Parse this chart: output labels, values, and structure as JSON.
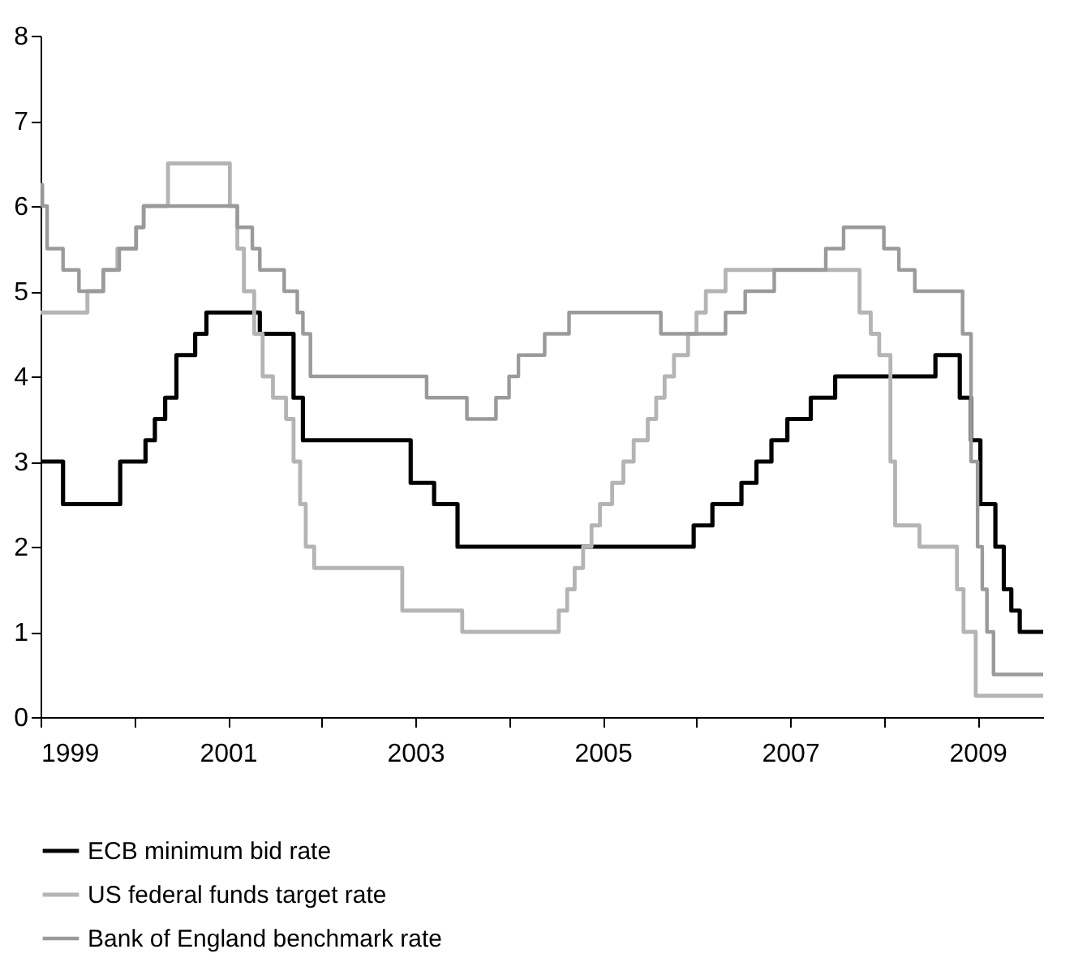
{
  "chart_data": {
    "type": "step",
    "xlim": [
      1999,
      2009.7
    ],
    "xticks": [
      1999,
      {
        "value": 2000,
        "label": null
      },
      2001,
      {
        "value": 2002,
        "label": null
      },
      2003,
      {
        "value": 2004,
        "label": null
      },
      2005,
      {
        "value": 2006,
        "label": null
      },
      2007,
      {
        "value": 2008,
        "label": null
      },
      2009
    ],
    "ylim": [
      0,
      8
    ],
    "yticks": [
      0,
      1,
      2,
      3,
      4,
      5,
      6,
      7,
      8
    ],
    "grid": false,
    "legend": "bottom",
    "series": [
      {
        "name": "ECB minimum bid rate",
        "color": "#000000",
        "x": [
          1999.0,
          1999.24,
          1999.85,
          2000.12,
          2000.22,
          2000.33,
          2000.45,
          2000.65,
          2000.77,
          2001.34,
          2001.7,
          2001.8,
          2002.95,
          2003.2,
          2003.45,
          2005.97,
          2006.17,
          2006.48,
          2006.64,
          2006.8,
          2006.97,
          2007.22,
          2007.48,
          2008.55,
          2008.81,
          2008.93,
          2009.03,
          2009.19,
          2009.28,
          2009.36,
          2009.45,
          2009.7
        ],
        "values": [
          3.0,
          2.5,
          3.0,
          3.25,
          3.5,
          3.75,
          4.25,
          4.5,
          4.75,
          4.5,
          3.75,
          3.25,
          2.75,
          2.5,
          2.0,
          2.25,
          2.5,
          2.75,
          3.0,
          3.25,
          3.5,
          3.75,
          4.0,
          4.25,
          3.75,
          3.25,
          2.5,
          2.0,
          1.5,
          1.25,
          1.0,
          1.0
        ]
      },
      {
        "name": "US federal funds target rate",
        "color": "#b4b4b4",
        "x": [
          1999.0,
          1999.5,
          1999.67,
          1999.82,
          2000.02,
          2000.1,
          2000.36,
          2001.02,
          2001.1,
          2001.17,
          2001.28,
          2001.37,
          2001.48,
          2001.62,
          2001.7,
          2001.77,
          2001.83,
          2001.92,
          2002.86,
          2003.5,
          2004.53,
          2004.62,
          2004.7,
          2004.79,
          2004.88,
          2004.97,
          2005.1,
          2005.22,
          2005.33,
          2005.48,
          2005.57,
          2005.66,
          2005.76,
          2005.91,
          2006.0,
          2006.1,
          2006.31,
          2007.74,
          2007.86,
          2007.95,
          2008.07,
          2008.12,
          2008.38,
          2008.78,
          2008.85,
          2008.98,
          2009.7
        ],
        "values": [
          4.75,
          5.0,
          5.25,
          5.5,
          5.75,
          6.0,
          6.5,
          6.0,
          5.5,
          5.0,
          4.5,
          4.0,
          3.75,
          3.5,
          3.0,
          2.5,
          2.0,
          1.75,
          1.25,
          1.0,
          1.25,
          1.5,
          1.75,
          2.0,
          2.25,
          2.5,
          2.75,
          3.0,
          3.25,
          3.5,
          3.75,
          4.0,
          4.25,
          4.5,
          4.75,
          5.0,
          5.25,
          4.75,
          4.5,
          4.25,
          3.0,
          2.25,
          2.0,
          1.5,
          1.0,
          0.25,
          0.25
        ]
      },
      {
        "name": "Bank of England benchmark rate",
        "color": "#9a9a9a",
        "x": [
          1999.0,
          1999.02,
          1999.07,
          1999.24,
          1999.41,
          1999.67,
          1999.84,
          2000.02,
          2000.1,
          2001.1,
          2001.26,
          2001.34,
          2001.6,
          2001.74,
          2001.8,
          2001.88,
          2003.12,
          2003.55,
          2003.86,
          2004.0,
          2004.1,
          2004.38,
          2004.64,
          2005.62,
          2006.31,
          2006.52,
          2006.83,
          2007.38,
          2007.57,
          2008.0,
          2008.16,
          2008.33,
          2008.84,
          2008.93,
          2009.0,
          2009.05,
          2009.1,
          2009.17,
          2009.7
        ],
        "values": [
          6.25,
          6.0,
          5.5,
          5.25,
          5.0,
          5.25,
          5.5,
          5.75,
          6.0,
          5.75,
          5.5,
          5.25,
          5.0,
          4.75,
          4.5,
          4.0,
          3.75,
          3.5,
          3.75,
          4.0,
          4.25,
          4.5,
          4.75,
          4.5,
          4.75,
          5.0,
          5.25,
          5.5,
          5.75,
          5.5,
          5.25,
          5.0,
          4.5,
          3.0,
          2.0,
          1.5,
          1.0,
          0.5,
          0.5
        ]
      }
    ]
  }
}
